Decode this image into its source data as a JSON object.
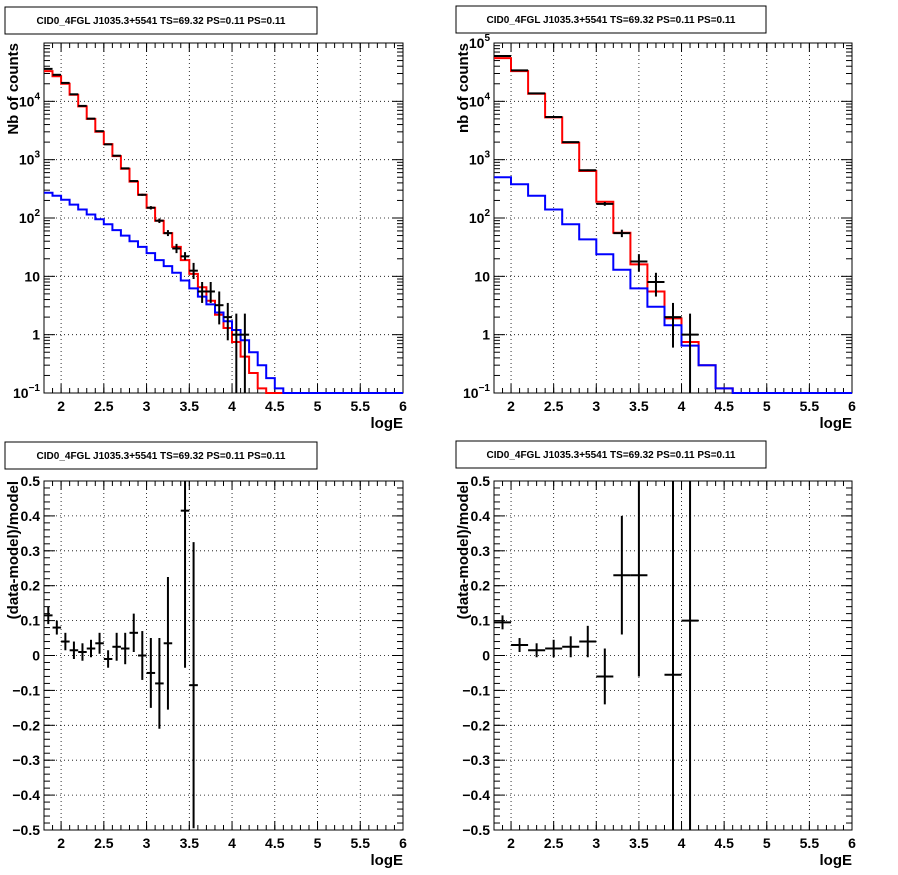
{
  "colors": {
    "data": "#000000",
    "total_model": "#ff0000",
    "component": "#0000ff",
    "grid": "#000000"
  },
  "chart_data": [
    {
      "type": "line",
      "title": "CID0_4FGL J1035.3+5541 TS=69.32 PS=0.11 PS=0.11",
      "xlabel": "logE",
      "ylabel": "Nb of counts",
      "log_y": true,
      "grid": true,
      "xlim": [
        1.8,
        6.0
      ],
      "ylim": [
        0.1,
        100000
      ],
      "xticks": [
        2,
        2.5,
        3,
        3.5,
        4,
        4.5,
        5,
        5.5,
        6
      ],
      "xtick_labels": [
        "2",
        "2.5",
        "3",
        "3.5",
        "4",
        "4.5",
        "5",
        "5.5",
        "6"
      ],
      "yticks": [
        0.1,
        1,
        10,
        100,
        1000,
        10000
      ],
      "ytick_labels": [
        "10⁻¹",
        "1",
        "10",
        "10²",
        "10³",
        "10⁴"
      ],
      "bin_edges": [
        1.8,
        1.9,
        2.0,
        2.1,
        2.2,
        2.3,
        2.4,
        2.5,
        2.6,
        2.7,
        2.8,
        2.9,
        3.0,
        3.1,
        3.2,
        3.3,
        3.4,
        3.5,
        3.6,
        3.7,
        3.8,
        3.9,
        4.0,
        4.1,
        4.2,
        4.3,
        4.4,
        4.5,
        4.6,
        4.7,
        4.8,
        4.9,
        5.0,
        5.1,
        5.2,
        5.3,
        5.4,
        5.5,
        5.6,
        5.7,
        5.8,
        5.9,
        6.0
      ],
      "series": [
        {
          "role": "total_model",
          "values": [
            33000,
            27000,
            20000,
            13000,
            8200,
            5000,
            3000,
            1850,
            1150,
            700,
            420,
            250,
            150,
            90,
            55,
            32,
            19,
            11,
            6.5,
            3.8,
            2.2,
            1.3,
            0.75,
            0.42,
            0.22,
            0.12,
            0.1,
            0.1,
            0.1,
            0.1,
            0.1,
            0.1,
            0.1,
            0.1,
            0.1,
            0.1,
            0.1,
            0.1,
            0.1,
            0.1,
            0.1,
            0.1
          ]
        },
        {
          "role": "component",
          "values": [
            270,
            240,
            205,
            170,
            140,
            115,
            95,
            78,
            62,
            50,
            40,
            32,
            25,
            19,
            15,
            11.5,
            8.5,
            6.2,
            4.5,
            3.3,
            2.4,
            1.7,
            1.2,
            0.8,
            0.5,
            0.3,
            0.18,
            0.12,
            0.1,
            0.1,
            0.1,
            0.1,
            0.1,
            0.1,
            0.1,
            0.1,
            0.1,
            0.1,
            0.1,
            0.1,
            0.1,
            0.1
          ]
        },
        {
          "role": "data",
          "x": [
            1.85,
            1.95,
            2.05,
            2.15,
            2.25,
            2.35,
            2.45,
            2.55,
            2.65,
            2.75,
            2.85,
            2.95,
            3.05,
            3.15,
            3.25,
            3.35,
            3.45,
            3.55,
            3.65,
            3.75,
            3.85,
            3.95,
            4.05,
            4.15
          ],
          "y": [
            36000,
            28500,
            20700,
            13200,
            8350,
            5050,
            3080,
            1830,
            1170,
            710,
            430,
            250,
            150,
            90,
            55,
            30,
            22,
            12.5,
            5.5,
            5.5,
            3.2,
            2.0,
            1.0,
            1.0
          ],
          "y_low": [
            35500,
            28100,
            20400,
            13000,
            8200,
            4980,
            3020,
            1790,
            1140,
            690,
            415,
            240,
            140,
            82,
            49,
            25,
            19,
            9,
            3.5,
            3.5,
            1.5,
            0.8,
            0.1,
            0.1
          ],
          "y_high": [
            36500,
            28900,
            21000,
            13400,
            8500,
            5120,
            3140,
            1870,
            1200,
            730,
            445,
            260,
            160,
            98,
            62,
            36,
            26,
            17,
            8,
            8,
            5.5,
            3.5,
            2.3,
            2.3
          ]
        }
      ]
    },
    {
      "type": "line",
      "title": "CID0_4FGL J1035.3+5541 TS=69.32 PS=0.11 PS=0.11",
      "xlabel": "logE",
      "ylabel": "nb of counts",
      "log_y": true,
      "grid": true,
      "xlim": [
        1.8,
        6.0
      ],
      "ylim": [
        0.1,
        100000
      ],
      "xticks": [
        2,
        2.5,
        3,
        3.5,
        4,
        4.5,
        5,
        5.5,
        6
      ],
      "xtick_labels": [
        "2",
        "2.5",
        "3",
        "3.5",
        "4",
        "4.5",
        "5",
        "5.5",
        "6"
      ],
      "yticks": [
        0.1,
        1,
        10,
        100,
        1000,
        10000,
        100000
      ],
      "ytick_labels": [
        "10⁻¹",
        "1",
        "10",
        "10²",
        "10³",
        "10⁴",
        "10⁵"
      ],
      "bin_edges": [
        1.8,
        2.0,
        2.2,
        2.4,
        2.6,
        2.8,
        3.0,
        3.2,
        3.4,
        3.6,
        3.8,
        4.0,
        4.2,
        4.4,
        4.6,
        4.8,
        5.0,
        5.2,
        5.4,
        5.6,
        5.8,
        6.0
      ],
      "series": [
        {
          "role": "total_model",
          "values": [
            55000,
            33000,
            13500,
            5300,
            1950,
            640,
            190,
            56,
            16,
            5.5,
            1.9,
            0.75,
            0.3,
            0.12,
            0.1,
            0.1,
            0.1,
            0.1,
            0.1,
            0.1,
            0.1
          ]
        },
        {
          "role": "component",
          "values": [
            500,
            380,
            240,
            140,
            78,
            43,
            24,
            13,
            6.2,
            3.0,
            1.45,
            0.65,
            0.3,
            0.12,
            0.1,
            0.1,
            0.1,
            0.1,
            0.1,
            0.1,
            0.1
          ]
        },
        {
          "role": "data",
          "x": [
            1.9,
            2.1,
            2.3,
            2.5,
            2.7,
            2.9,
            3.1,
            3.3,
            3.5,
            3.7,
            3.9,
            4.1
          ],
          "y": [
            60000,
            34000,
            13700,
            5400,
            2000,
            660,
            175,
            55,
            18,
            8,
            2.0,
            1.0
          ],
          "y_low": [
            59500,
            33600,
            13500,
            5300,
            1950,
            640,
            162,
            47,
            12,
            4.5,
            0.6,
            0.1
          ],
          "y_high": [
            60500,
            34400,
            13900,
            5500,
            2050,
            680,
            188,
            63,
            24,
            11.5,
            3.5,
            2.3
          ]
        }
      ]
    },
    {
      "type": "scatter",
      "title": "CID0_4FGL J1035.3+5541 TS=69.32 PS=0.11 PS=0.11",
      "xlabel": "logE",
      "ylabel": "(data-model)/model",
      "grid": true,
      "xlim": [
        1.8,
        6.0
      ],
      "ylim": [
        -0.5,
        0.5
      ],
      "xticks": [
        2,
        2.5,
        3,
        3.5,
        4,
        4.5,
        5,
        5.5,
        6
      ],
      "xtick_labels": [
        "2",
        "2.5",
        "3",
        "3.5",
        "4",
        "4.5",
        "5",
        "5.5",
        "6"
      ],
      "yticks": [
        -0.5,
        -0.4,
        -0.3,
        -0.2,
        -0.1,
        0,
        0.1,
        0.2,
        0.3,
        0.4,
        0.5
      ],
      "ytick_labels": [
        "−0.5",
        "−0.4",
        "−0.3",
        "−0.2",
        "−0.1",
        "0",
        "0.1",
        "0.2",
        "0.3",
        "0.4",
        "0.5"
      ],
      "x_halfwidth": 0.05,
      "series": [
        {
          "role": "data",
          "x": [
            1.85,
            1.95,
            2.05,
            2.15,
            2.25,
            2.35,
            2.45,
            2.55,
            2.65,
            2.75,
            2.85,
            2.95,
            3.05,
            3.15,
            3.25,
            3.45,
            3.55
          ],
          "y": [
            0.115,
            0.08,
            0.04,
            0.015,
            0.01,
            0.02,
            0.035,
            -0.01,
            0.025,
            0.02,
            0.065,
            0.0,
            -0.05,
            -0.08,
            0.035,
            0.415,
            -0.085
          ],
          "err": [
            0.025,
            0.02,
            0.025,
            0.025,
            0.025,
            0.025,
            0.03,
            0.025,
            0.04,
            0.045,
            0.055,
            0.07,
            0.1,
            0.13,
            0.19,
            0.45,
            0.41
          ]
        }
      ]
    },
    {
      "type": "scatter",
      "title": "CID0_4FGL J1035.3+5541 TS=69.32 PS=0.11 PS=0.11",
      "xlabel": "logE",
      "ylabel": "(data-model)/model",
      "grid": true,
      "xlim": [
        1.8,
        6.0
      ],
      "ylim": [
        -0.5,
        0.5
      ],
      "xticks": [
        2,
        2.5,
        3,
        3.5,
        4,
        4.5,
        5,
        5.5,
        6
      ],
      "xtick_labels": [
        "2",
        "2.5",
        "3",
        "3.5",
        "4",
        "4.5",
        "5",
        "5.5",
        "6"
      ],
      "yticks": [
        -0.5,
        -0.4,
        -0.3,
        -0.2,
        -0.1,
        0,
        0.1,
        0.2,
        0.3,
        0.4,
        0.5
      ],
      "ytick_labels": [
        "−0.5",
        "−0.4",
        "−0.3",
        "−0.2",
        "−0.1",
        "0",
        "0.1",
        "0.2",
        "0.3",
        "0.4",
        "0.5"
      ],
      "x_halfwidth": 0.1,
      "series": [
        {
          "role": "data",
          "x": [
            1.9,
            2.1,
            2.3,
            2.5,
            2.7,
            2.9,
            3.1,
            3.3,
            3.5,
            3.9,
            4.1
          ],
          "y": [
            0.095,
            0.03,
            0.015,
            0.02,
            0.025,
            0.04,
            -0.06,
            0.23,
            0.23,
            -0.055,
            0.1
          ],
          "err": [
            0.02,
            0.02,
            0.02,
            0.025,
            0.03,
            0.045,
            0.08,
            0.17,
            0.29,
            0.65,
            0.8
          ]
        }
      ]
    }
  ]
}
